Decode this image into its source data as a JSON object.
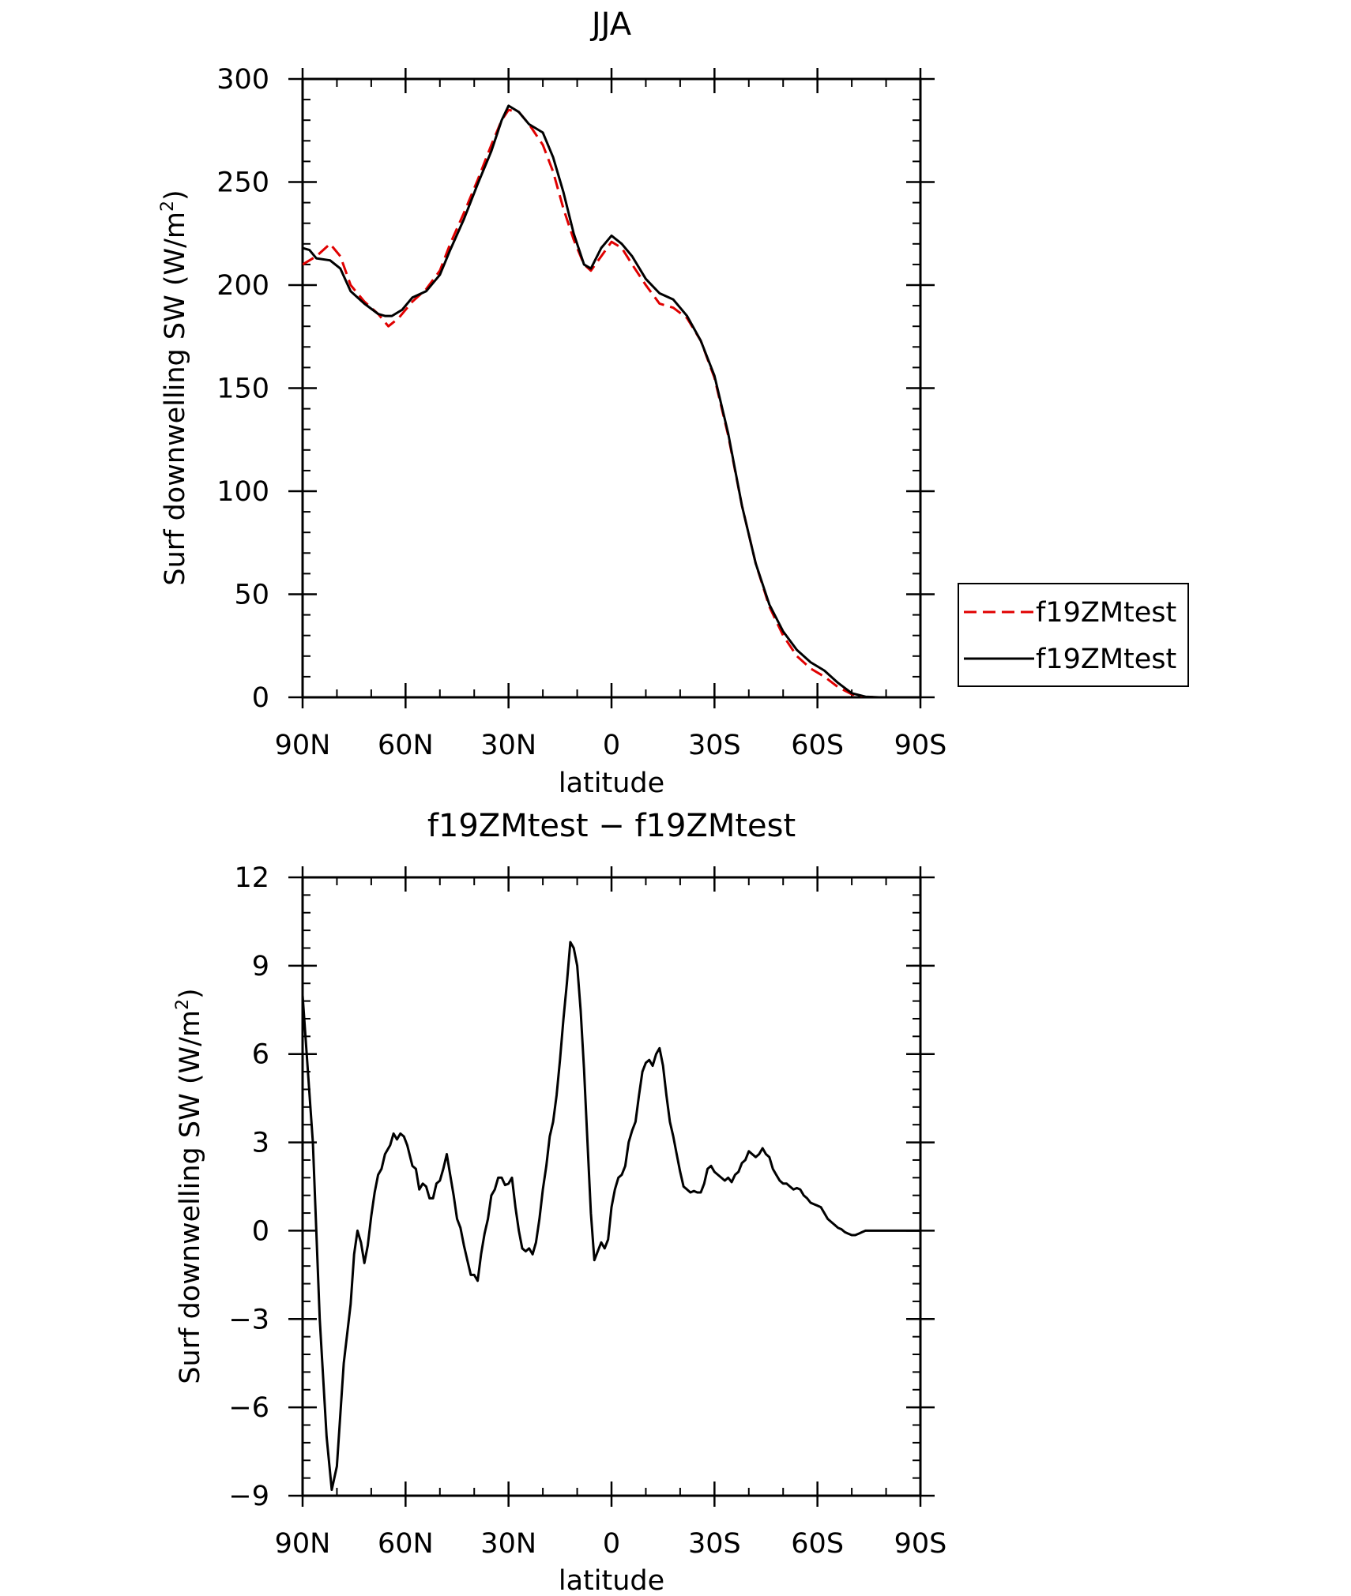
{
  "colors": {
    "control": "#e00000",
    "test": "#000000",
    "axis": "#000000"
  },
  "chart_data": [
    {
      "type": "line",
      "title": "JJA",
      "xlabel": "latitude",
      "ylabel_prefix": "Surf downwelling SW (W/m",
      "ylabel_sup": "2",
      "ylabel_suffix": ")",
      "xlim": [
        90,
        -90
      ],
      "ylim": [
        0,
        300
      ],
      "xticks": [
        90,
        60,
        30,
        0,
        -30,
        -60,
        -90
      ],
      "xtick_labels": [
        "90N",
        "60N",
        "30N",
        "0",
        "30S",
        "60S",
        "90S"
      ],
      "yticks": [
        0,
        50,
        100,
        150,
        200,
        250,
        300
      ],
      "ytick_labels": [
        "0",
        "50",
        "100",
        "150",
        "200",
        "250",
        "300"
      ],
      "legend_position": "right",
      "series": [
        {
          "name": "f19ZMtest",
          "style": "dashed",
          "color": "#e00000",
          "points": [
            [
              90,
              210
            ],
            [
              86,
              214
            ],
            [
              82,
              220
            ],
            [
              79,
              214
            ],
            [
              76,
              200
            ],
            [
              72,
              192
            ],
            [
              68,
              186
            ],
            [
              65,
              180
            ],
            [
              62,
              184
            ],
            [
              58,
              192
            ],
            [
              54,
              198
            ],
            [
              50,
              207
            ],
            [
              47,
              220
            ],
            [
              43,
              235
            ],
            [
              39,
              251
            ],
            [
              35,
              268
            ],
            [
              32,
              280
            ],
            [
              30,
              285
            ],
            [
              27,
              284
            ],
            [
              24,
              278
            ],
            [
              20,
              268
            ],
            [
              17,
              255
            ],
            [
              14,
              237
            ],
            [
              11,
              222
            ],
            [
              8,
              210
            ],
            [
              6,
              207
            ],
            [
              3,
              214
            ],
            [
              0,
              221
            ],
            [
              -3,
              218
            ],
            [
              -6,
              210
            ],
            [
              -10,
              200
            ],
            [
              -14,
              191
            ],
            [
              -18,
              189
            ],
            [
              -22,
              184
            ],
            [
              -26,
              173
            ],
            [
              -30,
              155
            ],
            [
              -34,
              127
            ],
            [
              -38,
              93
            ],
            [
              -42,
              65
            ],
            [
              -46,
              44
            ],
            [
              -50,
              30
            ],
            [
              -54,
              20
            ],
            [
              -58,
              14
            ],
            [
              -62,
              10
            ],
            [
              -66,
              5
            ],
            [
              -70,
              1.5
            ],
            [
              -74,
              0.2
            ],
            [
              -78,
              0
            ],
            [
              -90,
              0
            ]
          ]
        },
        {
          "name": "f19ZMtest",
          "style": "solid",
          "color": "#000000",
          "points": [
            [
              90,
              218
            ],
            [
              88,
              217
            ],
            [
              86,
              213
            ],
            [
              82,
              212
            ],
            [
              79,
              208
            ],
            [
              76,
              197
            ],
            [
              72,
              191
            ],
            [
              68,
              186
            ],
            [
              66,
              185
            ],
            [
              64,
              185
            ],
            [
              61,
              188
            ],
            [
              58,
              194
            ],
            [
              54,
              197
            ],
            [
              50,
              205
            ],
            [
              47,
              217
            ],
            [
              43,
              232
            ],
            [
              39,
              249
            ],
            [
              35,
              265
            ],
            [
              32,
              280
            ],
            [
              30,
              287
            ],
            [
              27,
              284
            ],
            [
              24,
              278
            ],
            [
              20,
              274
            ],
            [
              17,
              262
            ],
            [
              14,
              245
            ],
            [
              11,
              225
            ],
            [
              8,
              210
            ],
            [
              6,
              208
            ],
            [
              3,
              218
            ],
            [
              0,
              224
            ],
            [
              -3,
              220
            ],
            [
              -6,
              214
            ],
            [
              -10,
              203
            ],
            [
              -14,
              196
            ],
            [
              -18,
              193
            ],
            [
              -22,
              185
            ],
            [
              -26,
              173
            ],
            [
              -30,
              156
            ],
            [
              -34,
              128
            ],
            [
              -38,
              93
            ],
            [
              -42,
              65
            ],
            [
              -46,
              45
            ],
            [
              -50,
              32
            ],
            [
              -54,
              23
            ],
            [
              -58,
              17
            ],
            [
              -62,
              13
            ],
            [
              -66,
              7
            ],
            [
              -70,
              2
            ],
            [
              -74,
              0.3
            ],
            [
              -78,
              0
            ],
            [
              -90,
              0
            ]
          ]
        }
      ]
    },
    {
      "type": "line",
      "title": "f19ZMtest − f19ZMtest",
      "xlabel": "latitude",
      "ylabel_prefix": "Surf downwelling SW (W/m",
      "ylabel_sup": "2",
      "ylabel_suffix": ")",
      "xlim": [
        90,
        -90
      ],
      "ylim": [
        -9,
        12
      ],
      "xticks": [
        90,
        60,
        30,
        0,
        -30,
        -60,
        -90
      ],
      "xtick_labels": [
        "90N",
        "60N",
        "30N",
        "0",
        "30S",
        "60S",
        "90S"
      ],
      "yticks": [
        -9,
        -6,
        -3,
        0,
        3,
        6,
        9,
        12
      ],
      "ytick_labels": [
        "−9",
        "−6",
        "−3",
        "0",
        "3",
        "6",
        "9",
        "12"
      ],
      "series": [
        {
          "style": "solid",
          "color": "#000000",
          "points": [
            [
              90,
              8
            ],
            [
              87,
              3
            ],
            [
              85,
              -3
            ],
            [
              83,
              -7
            ],
            [
              81.5,
              -8.8
            ],
            [
              80,
              -8
            ],
            [
              78,
              -4.5
            ],
            [
              76,
              -2.5
            ],
            [
              75,
              -0.8
            ],
            [
              74,
              0
            ],
            [
              73,
              -0.4
            ],
            [
              72,
              -1.1
            ],
            [
              71,
              -0.5
            ],
            [
              70,
              0.5
            ],
            [
              69,
              1.3
            ],
            [
              68,
              1.9
            ],
            [
              67,
              2.1
            ],
            [
              66,
              2.6
            ],
            [
              64.5,
              2.9
            ],
            [
              63.5,
              3.3
            ],
            [
              62.5,
              3.1
            ],
            [
              61.5,
              3.3
            ],
            [
              60.5,
              3.2
            ],
            [
              59.5,
              2.9
            ],
            [
              58,
              2.2
            ],
            [
              57,
              2.1
            ],
            [
              56,
              1.4
            ],
            [
              55,
              1.6
            ],
            [
              54,
              1.5
            ],
            [
              53,
              1.1
            ],
            [
              52,
              1.1
            ],
            [
              51,
              1.6
            ],
            [
              50,
              1.7
            ],
            [
              49,
              2.1
            ],
            [
              48,
              2.6
            ],
            [
              47,
              1.9
            ],
            [
              46,
              1.2
            ],
            [
              45,
              0.4
            ],
            [
              44,
              0.1
            ],
            [
              43,
              -0.5
            ],
            [
              42,
              -1
            ],
            [
              41,
              -1.5
            ],
            [
              40,
              -1.5
            ],
            [
              39,
              -1.7
            ],
            [
              38,
              -0.8
            ],
            [
              37,
              -0.1
            ],
            [
              36,
              0.4
            ],
            [
              35,
              1.2
            ],
            [
              34,
              1.4
            ],
            [
              33,
              1.8
            ],
            [
              32,
              1.8
            ],
            [
              31,
              1.55
            ],
            [
              30,
              1.6
            ],
            [
              29,
              1.8
            ],
            [
              28,
              0.8
            ],
            [
              27,
              0
            ],
            [
              26,
              -0.6
            ],
            [
              25,
              -0.7
            ],
            [
              24,
              -0.6
            ],
            [
              23,
              -0.8
            ],
            [
              22,
              -0.4
            ],
            [
              21,
              0.4
            ],
            [
              20,
              1.4
            ],
            [
              19,
              2.2
            ],
            [
              18,
              3.2
            ],
            [
              17,
              3.7
            ],
            [
              16,
              4.6
            ],
            [
              15,
              5.8
            ],
            [
              14,
              7.2
            ],
            [
              13,
              8.4
            ],
            [
              12,
              9.8
            ],
            [
              11,
              9.6
            ],
            [
              10,
              9
            ],
            [
              9,
              7.5
            ],
            [
              8,
              5.5
            ],
            [
              7,
              3
            ],
            [
              6,
              0.6
            ],
            [
              5,
              -1
            ],
            [
              4,
              -0.7
            ],
            [
              3,
              -0.4
            ],
            [
              2,
              -0.6
            ],
            [
              1,
              -0.3
            ],
            [
              0,
              0.8
            ],
            [
              -1,
              1.4
            ],
            [
              -2,
              1.8
            ],
            [
              -3,
              1.9
            ],
            [
              -4,
              2.2
            ],
            [
              -5,
              3
            ],
            [
              -6,
              3.4
            ],
            [
              -7,
              3.7
            ],
            [
              -8,
              4.6
            ],
            [
              -9,
              5.4
            ],
            [
              -10,
              5.7
            ],
            [
              -11,
              5.8
            ],
            [
              -12,
              5.6
            ],
            [
              -13,
              6
            ],
            [
              -14,
              6.2
            ],
            [
              -15,
              5.6
            ],
            [
              -16,
              4.6
            ],
            [
              -17,
              3.7
            ],
            [
              -18,
              3.2
            ],
            [
              -19,
              2.6
            ],
            [
              -20,
              2
            ],
            [
              -21,
              1.5
            ],
            [
              -22,
              1.4
            ],
            [
              -23,
              1.3
            ],
            [
              -24,
              1.35
            ],
            [
              -25,
              1.3
            ],
            [
              -26,
              1.3
            ],
            [
              -27,
              1.6
            ],
            [
              -28,
              2.1
            ],
            [
              -29,
              2.2
            ],
            [
              -30,
              2
            ],
            [
              -31,
              1.9
            ],
            [
              -32,
              1.8
            ],
            [
              -33,
              1.7
            ],
            [
              -34,
              1.8
            ],
            [
              -35,
              1.65
            ],
            [
              -36,
              1.9
            ],
            [
              -37,
              2
            ],
            [
              -38,
              2.3
            ],
            [
              -39,
              2.4
            ],
            [
              -40,
              2.7
            ],
            [
              -41,
              2.6
            ],
            [
              -42,
              2.5
            ],
            [
              -43,
              2.6
            ],
            [
              -44,
              2.8
            ],
            [
              -45,
              2.6
            ],
            [
              -46,
              2.5
            ],
            [
              -47,
              2.1
            ],
            [
              -48,
              1.9
            ],
            [
              -49,
              1.7
            ],
            [
              -50,
              1.6
            ],
            [
              -51,
              1.6
            ],
            [
              -52,
              1.5
            ],
            [
              -53,
              1.4
            ],
            [
              -54,
              1.45
            ],
            [
              -55,
              1.4
            ],
            [
              -56,
              1.2
            ],
            [
              -57,
              1.1
            ],
            [
              -58,
              0.95
            ],
            [
              -59,
              0.9
            ],
            [
              -60,
              0.85
            ],
            [
              -61,
              0.8
            ],
            [
              -62,
              0.6
            ],
            [
              -63,
              0.4
            ],
            [
              -64,
              0.3
            ],
            [
              -65,
              0.2
            ],
            [
              -66,
              0.1
            ],
            [
              -67,
              0.05
            ],
            [
              -68,
              -0.05
            ],
            [
              -69,
              -0.1
            ],
            [
              -70,
              -0.15
            ],
            [
              -71,
              -0.15
            ],
            [
              -72,
              -0.1
            ],
            [
              -73,
              -0.05
            ],
            [
              -74,
              0
            ],
            [
              -76,
              0
            ],
            [
              -90,
              0
            ]
          ]
        }
      ]
    }
  ]
}
